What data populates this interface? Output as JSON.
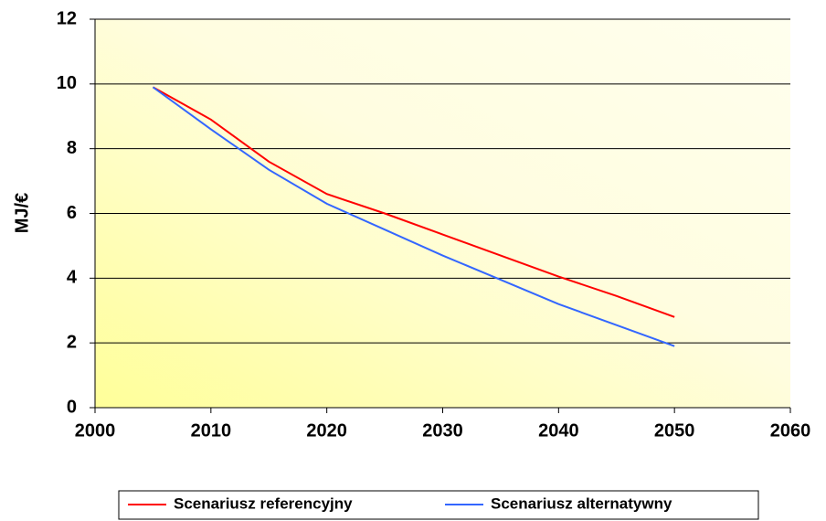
{
  "chart_data": {
    "type": "line",
    "y_label": "MJ/€",
    "x": [
      2005,
      2010,
      2015,
      2020,
      2025,
      2030,
      2035,
      2040,
      2045,
      2050
    ],
    "series": [
      {
        "name": "Scenariusz referencyjny",
        "color": "#ff0000",
        "values": [
          9.9,
          8.9,
          7.6,
          6.6,
          6.0,
          5.35,
          4.7,
          4.05,
          3.45,
          2.8
        ]
      },
      {
        "name": "Scenariusz alternatywny",
        "color": "#3366ff",
        "values": [
          9.9,
          8.6,
          7.35,
          6.3,
          5.5,
          4.7,
          3.95,
          3.2,
          2.55,
          1.9
        ]
      }
    ],
    "xlim": [
      2000,
      2060
    ],
    "xticks": [
      2000,
      2010,
      2020,
      2030,
      2040,
      2050,
      2060
    ],
    "ylim": [
      0,
      12
    ],
    "yticks": [
      0,
      2,
      4,
      6,
      8,
      10,
      12
    ],
    "grid": true,
    "legend": "bottom"
  }
}
